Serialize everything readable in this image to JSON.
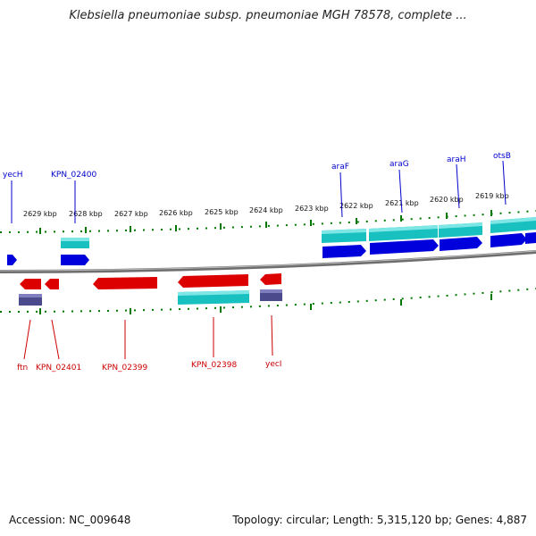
{
  "title": "Klebsiella pneumoniae subsp. pneumoniae MGH 78578, complete ...",
  "footer": {
    "accession": "Accession: NC_009648",
    "summary": "Topology: circular; Length: 5,315,120 bp; Genes: 4,887"
  },
  "colors": {
    "forward_gene": "#0000dd",
    "reverse_gene": "#dd0000",
    "cds": "#19c0c0",
    "rna": "#4a4a8c",
    "tick": "#007700",
    "top_label": "#0000cc",
    "bottom_label": "#cc0000",
    "backbone": "#808080"
  },
  "axis": {
    "ticks": [
      "2629 kbp",
      "2628 kbp",
      "2627 kbp",
      "2626 kbp",
      "2625 kbp",
      "2624 kbp",
      "2623 kbp",
      "2622 kbp",
      "2621 kbp",
      "2620 kbp",
      "2619 kbp"
    ]
  },
  "genes_top": [
    {
      "label": "yecH"
    },
    {
      "label": "KPN_02400"
    },
    {
      "label": "araF"
    },
    {
      "label": "araG"
    },
    {
      "label": "araH"
    },
    {
      "label": "otsB"
    }
  ],
  "genes_bottom": [
    {
      "label": "ftn"
    },
    {
      "label": "KPN_02401"
    },
    {
      "label": "KPN_02399"
    },
    {
      "label": "KPN_02398"
    },
    {
      "label": "yecI"
    }
  ]
}
